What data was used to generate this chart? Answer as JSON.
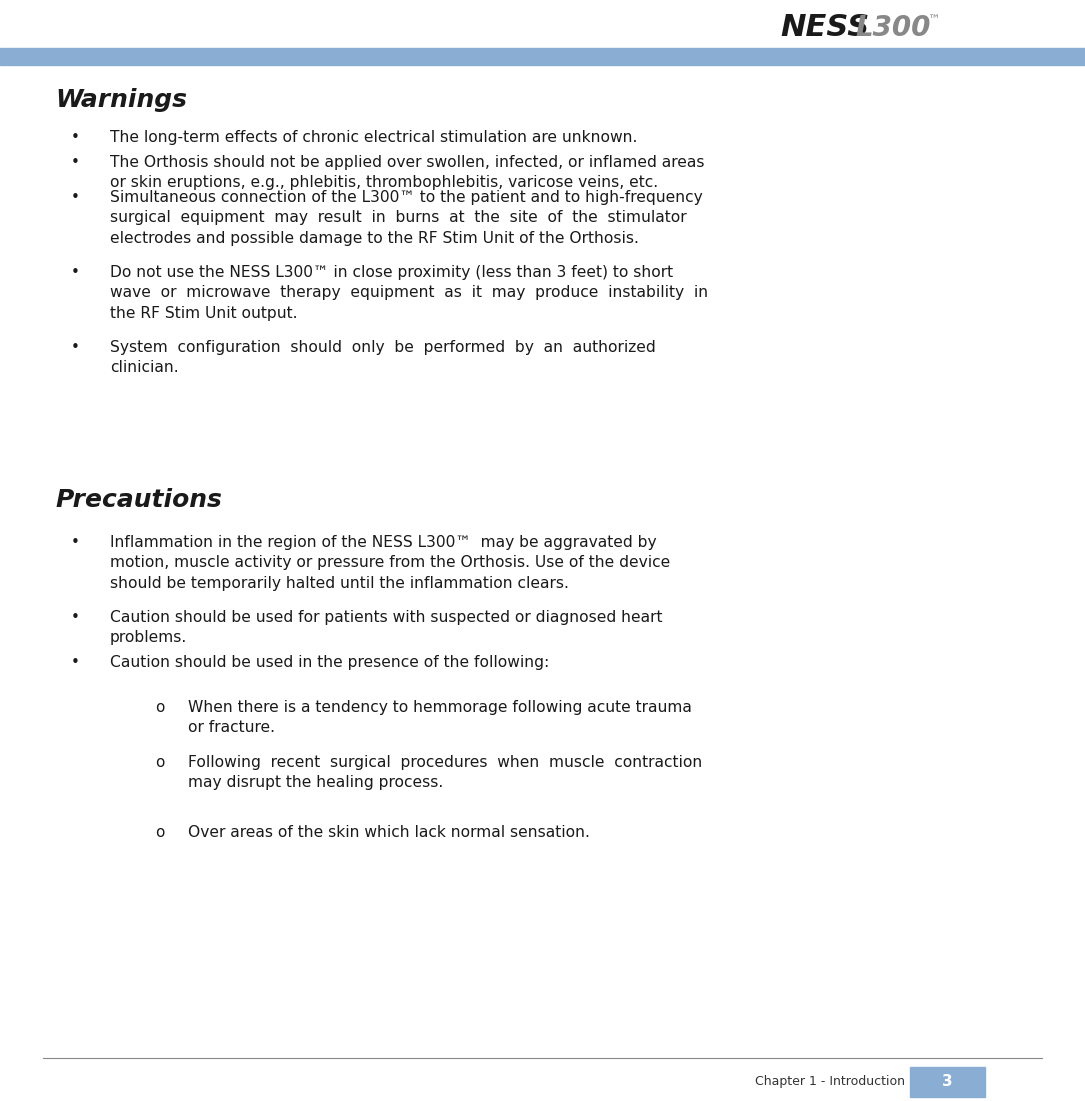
{
  "bg_color": "#ffffff",
  "header_bar_color": "#8aadd4",
  "footer_bar_color": "#8aadd4",
  "footer_text": "Chapter 1 - Introduction",
  "footer_number": "3",
  "warnings_title": "Warnings",
  "warnings_bullets": [
    "The long-term effects of chronic electrical stimulation are unknown.",
    "The Orthosis should not be applied over swollen, infected, or inflamed areas\nor skin eruptions, e.g., phlebitis, thrombophlebitis, varicose veins, etc.",
    "Simultaneous connection of the L300™ to the patient and to high-frequency\nsurgical  equipment  may  result  in  burns  at  the  site  of  the  stimulator\nelectrodes and possible damage to the RF Stim Unit of the Orthosis.",
    "Do not use the NESS L300™ in close proximity (less than 3 feet) to short\nwave  or  microwave  therapy  equipment  as  it  may  produce  instability  in\nthe RF Stim Unit output.",
    "System  configuration  should  only  be  performed  by  an  authorized\nclinician."
  ],
  "precautions_title": "Precautions",
  "precautions_bullets": [
    "Inflammation in the region of the NESS L300™  may be aggravated by\nmotion, muscle activity or pressure from the Orthosis. Use of the device\nshould be temporarily halted until the inflammation clears.",
    "Caution should be used for patients with suspected or diagnosed heart\nproblems.",
    "Caution should be used in the presence of the following:"
  ],
  "sub_bullets": [
    "When there is a tendency to hemmorage following acute trauma\nor fracture.",
    "Following  recent  surgical  procedures  when  muscle  contraction\nmay disrupt the healing process.",
    "Over areas of the skin which lack normal sensation."
  ]
}
